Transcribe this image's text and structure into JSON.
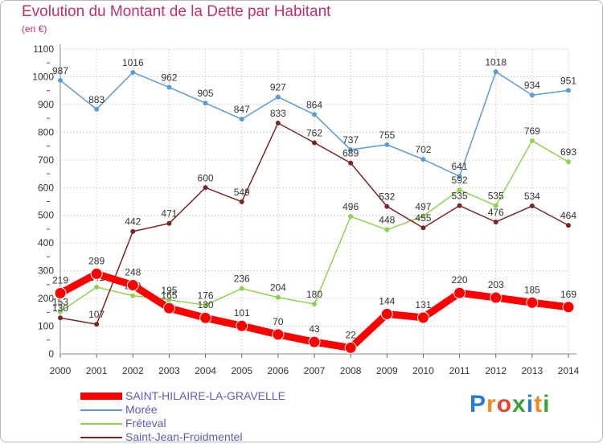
{
  "chart_data": {
    "type": "line",
    "title": "Evolution du Montant de la Dette par Habitant",
    "subtitle": "(en €)",
    "x": [
      "2000",
      "2001",
      "2002",
      "2003",
      "2004",
      "2005",
      "2006",
      "2007",
      "2008",
      "2009",
      "2010",
      "2011",
      "2012",
      "2013",
      "2014"
    ],
    "ylim": [
      0,
      1100
    ],
    "yticks": [
      0,
      100,
      200,
      300,
      400,
      500,
      600,
      700,
      800,
      900,
      1000,
      1100
    ],
    "grid": true,
    "legend": "bottom-left",
    "series": [
      {
        "name": "SAINT-HILAIRE-LA-GRAVELLE",
        "color": "#ff0000",
        "values": [
          219,
          289,
          248,
          165,
          130,
          101,
          70,
          43,
          22,
          144,
          131,
          220,
          203,
          185,
          169
        ]
      },
      {
        "name": "Morée",
        "color": "#5b9bd5",
        "values": [
          987,
          883,
          1016,
          962,
          905,
          847,
          927,
          864,
          737,
          755,
          702,
          641,
          1018,
          934,
          951
        ]
      },
      {
        "name": "Fréteval",
        "color": "#8fd14f",
        "values": [
          153,
          241,
          210,
          195,
          176,
          236,
          204,
          180,
          496,
          448,
          497,
          592,
          535,
          769,
          693
        ]
      },
      {
        "name": "Saint-Jean-Froidmentel",
        "color": "#7b2525",
        "values": [
          130,
          107,
          442,
          471,
          600,
          549,
          833,
          762,
          689,
          532,
          455,
          535,
          476,
          534,
          464
        ]
      }
    ]
  },
  "brand": {
    "text": "Proxiti",
    "letters": [
      "P",
      "r",
      "o",
      "x",
      "i",
      "t",
      "i"
    ],
    "colors": [
      "#2b7bd6",
      "#f08a1c",
      "#e8442c",
      "#3aa23a",
      "#2b7bd6",
      "#f08a1c",
      "#3aa23a"
    ]
  }
}
